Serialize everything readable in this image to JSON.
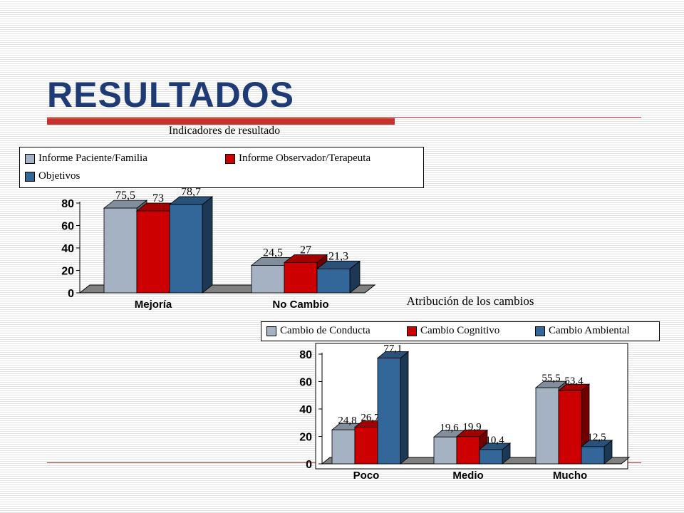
{
  "slide": {
    "title": "RESULTADOS"
  },
  "colors": {
    "title": "#1f3b76",
    "rule": "#c8302c"
  },
  "chart_data": [
    {
      "type": "bar",
      "title": "Indicadores de resultado",
      "categories": [
        "Mejoría",
        "No Cambio"
      ],
      "series": [
        {
          "name": "Informe Paciente/Familia",
          "values": [
            75.5,
            24.5
          ],
          "labels": [
            "75,5",
            "24,5"
          ],
          "color": "#a4b2c4"
        },
        {
          "name": "Informe Observador/Terapeuta",
          "values": [
            73,
            27
          ],
          "labels": [
            "73",
            "27"
          ],
          "color": "#cc0000"
        },
        {
          "name": "Objetivos",
          "values": [
            78.7,
            21.3
          ],
          "labels": [
            "78,7",
            "21,3"
          ],
          "color": "#336699"
        }
      ],
      "yticks": [
        0,
        20,
        40,
        60,
        80
      ],
      "ylim": [
        0,
        80
      ],
      "xlabel": "",
      "ylabel": "",
      "legend": "top",
      "grid": false,
      "three_d": true
    },
    {
      "type": "bar",
      "title": "Atribución de los cambios",
      "categories": [
        "Poco",
        "Medio",
        "Mucho"
      ],
      "series": [
        {
          "name": "Cambio de Conducta",
          "values": [
            24.8,
            19.6,
            55.5
          ],
          "labels": [
            "24,8",
            "19,6",
            "55,5"
          ],
          "color": "#a4b2c4"
        },
        {
          "name": "Cambio Cognitivo",
          "values": [
            26.7,
            19.9,
            53.4
          ],
          "labels": [
            "26,7",
            "19,9",
            "53,4"
          ],
          "color": "#cc0000"
        },
        {
          "name": "Cambio Ambiental",
          "values": [
            77.1,
            10.4,
            12.5
          ],
          "labels": [
            "77,1",
            "10,4",
            "12,5"
          ],
          "color": "#336699"
        }
      ],
      "yticks": [
        0,
        20,
        40,
        60,
        80
      ],
      "ylim": [
        0,
        80
      ],
      "xlabel": "",
      "ylabel": "",
      "legend": "top",
      "grid": false,
      "three_d": true
    }
  ]
}
